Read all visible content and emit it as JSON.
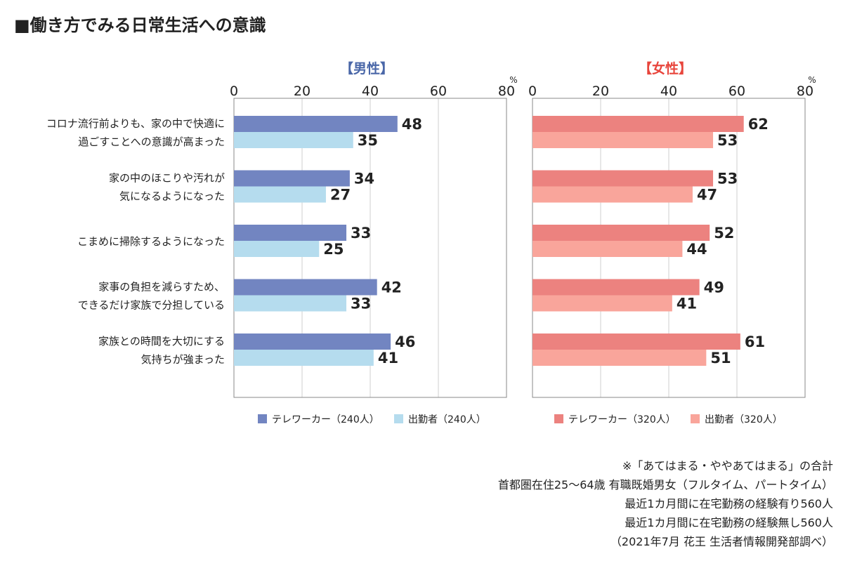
{
  "title": "■働き方でみる日常生活への意識",
  "notes": [
    "※「あてはまる・ややあてはまる」の合計",
    "首都圏在住25〜64歳 有職既婚男女（フルタイム、パートタイム）",
    "最近1カ月間に在宅勤務の経験有り560人",
    "最近1カ月間に在宅勤務の経験無し560人",
    "（2021年7月 花王 生活者情報開発部調べ）"
  ],
  "chart_data": {
    "type": "bar",
    "orientation": "horizontal",
    "categories": [
      [
        "コロナ流行前よりも、家の中で快適に",
        "過ごすことへの意識が高まった"
      ],
      [
        "家の中のほこりや汚れが",
        "気になるようになった"
      ],
      [
        "こまめに掃除するようになった"
      ],
      [
        "家事の負担を減らすため、",
        "できるだけ家族で分担している"
      ],
      [
        "家族との時間を大切にする",
        "気持ちが強まった"
      ]
    ],
    "axis": {
      "min": 0,
      "max": 80,
      "ticks": [
        0,
        20,
        40,
        60,
        80
      ],
      "unit": "%"
    },
    "panels": [
      {
        "title": "【男性】",
        "title_color": "#4a67a8",
        "series": [
          {
            "name": "テレワーカー（240人）",
            "color": "#7285c1",
            "values": [
              48,
              34,
              33,
              42,
              46
            ]
          },
          {
            "name": "出勤者（240人）",
            "color": "#b5dcee",
            "values": [
              35,
              27,
              25,
              33,
              41
            ]
          }
        ]
      },
      {
        "title": "【女性】",
        "title_color": "#e8453c",
        "series": [
          {
            "name": "テレワーカー（320人）",
            "color": "#ec827f",
            "values": [
              62,
              53,
              52,
              49,
              61
            ]
          },
          {
            "name": "出勤者（320人）",
            "color": "#f9a59b",
            "values": [
              53,
              47,
              44,
              41,
              51
            ]
          }
        ]
      }
    ]
  }
}
